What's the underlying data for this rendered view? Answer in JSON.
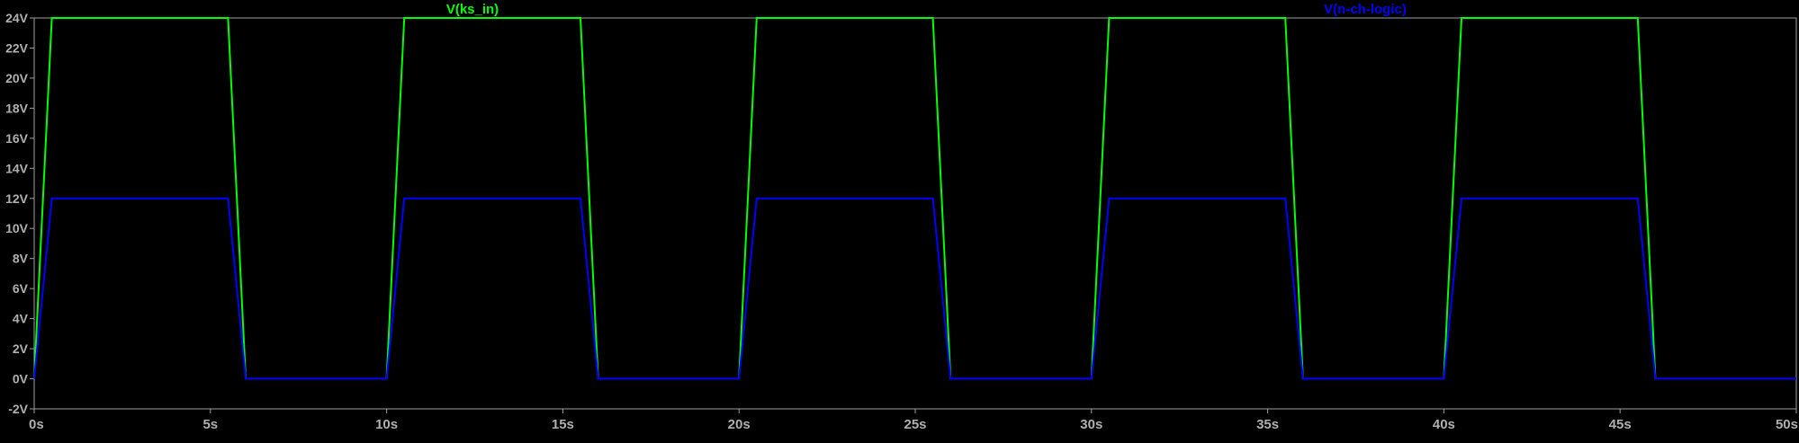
{
  "chart_data": {
    "type": "line",
    "title": "",
    "xlabel": "",
    "ylabel": "",
    "xlim": [
      0,
      50
    ],
    "ylim": [
      -2,
      24
    ],
    "x_ticks": [
      "0s",
      "5s",
      "10s",
      "15s",
      "20s",
      "25s",
      "30s",
      "35s",
      "40s",
      "45s",
      "50s"
    ],
    "y_ticks": [
      "-2V",
      "0V",
      "2V",
      "4V",
      "6V",
      "8V",
      "10V",
      "12V",
      "14V",
      "16V",
      "18V",
      "20V",
      "22V",
      "24V"
    ],
    "grid": false,
    "colors": {
      "background": "#000000",
      "axes": "#a0a0a0",
      "tick_label": "#b0b0b0"
    },
    "series": [
      {
        "name": "V(ks_in)",
        "color": "#00ff00",
        "points": [
          [
            0,
            0
          ],
          [
            0.5,
            24
          ],
          [
            5.5,
            24
          ],
          [
            6,
            0
          ],
          [
            10,
            0
          ],
          [
            10.5,
            24
          ],
          [
            15.5,
            24
          ],
          [
            16,
            0
          ],
          [
            20,
            0
          ],
          [
            20.5,
            24
          ],
          [
            25.5,
            24
          ],
          [
            26,
            0
          ],
          [
            30,
            0
          ],
          [
            30.5,
            24
          ],
          [
            35.5,
            24
          ],
          [
            36,
            0
          ],
          [
            40,
            0
          ],
          [
            40.5,
            24
          ],
          [
            45.5,
            24
          ],
          [
            46,
            0
          ],
          [
            50,
            0
          ]
        ]
      },
      {
        "name": "V(n-ch-logic)",
        "color": "#0000ff",
        "points": [
          [
            0,
            0
          ],
          [
            0.5,
            12
          ],
          [
            5.5,
            12
          ],
          [
            6,
            0
          ],
          [
            10,
            0
          ],
          [
            10.5,
            12
          ],
          [
            15.5,
            12
          ],
          [
            16,
            0
          ],
          [
            20,
            0
          ],
          [
            20.5,
            12
          ],
          [
            25.5,
            12
          ],
          [
            26,
            0
          ],
          [
            30,
            0
          ],
          [
            30.5,
            12
          ],
          [
            35.5,
            12
          ],
          [
            36,
            0
          ],
          [
            40,
            0
          ],
          [
            40.5,
            12
          ],
          [
            45.5,
            12
          ],
          [
            46,
            0
          ],
          [
            50,
            0
          ]
        ]
      }
    ]
  }
}
